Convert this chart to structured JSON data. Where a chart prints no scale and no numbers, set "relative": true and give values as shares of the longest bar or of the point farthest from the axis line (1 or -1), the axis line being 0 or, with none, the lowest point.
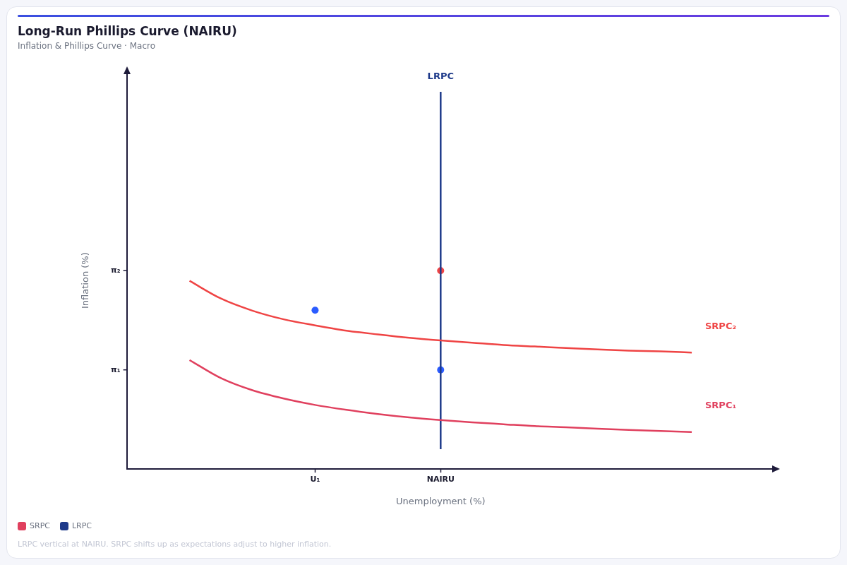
{
  "chart_data": {
    "type": "line",
    "title": "Long-Run Phillips Curve (NAIRU)",
    "subtitle": "Inflation & Phillips Curve · Macro",
    "xlabel": "Unemployment (%)",
    "ylabel": "Inflation (%)",
    "relative": true,
    "categories": [
      null,
      null,
      null,
      null,
      null,
      null,
      "U₁",
      null,
      null,
      null,
      "NAIRU",
      null,
      null,
      null,
      null,
      null,
      null,
      null,
      null,
      null,
      null
    ],
    "grid": false,
    "legend": "bottom left",
    "series": [
      {
        "name": "SRPC",
        "color": "#e0405e",
        "values": [
          null,
          null,
          0.289,
          0.241,
          0.209,
          0.187,
          0.17,
          0.157,
          0.146,
          0.137,
          0.13,
          0.124,
          0.119,
          0.114,
          0.111,
          0.107,
          0.104,
          0.101,
          0.098,
          null,
          null
        ]
      },
      {
        "color": "#ef4444",
        "values": [
          null,
          null,
          0.499,
          0.452,
          0.42,
          0.397,
          0.381,
          0.367,
          0.357,
          0.348,
          0.341,
          0.335,
          0.329,
          0.325,
          0.321,
          0.317,
          0.314,
          0.312,
          0.309,
          null,
          null
        ]
      },
      {
        "name": "LRPC",
        "color": "#1e3a8a",
        "x": [
          "NAIRU",
          "NAIRU"
        ],
        "values": [
          0.053,
          1.0
        ]
      },
      {
        "type": "scatter",
        "marker": "circle",
        "x": [
          "NAIRU",
          "NAIRU",
          "U₁"
        ],
        "values": [
          0.526,
          0.263,
          0.421
        ],
        "colors": [
          "#ef4444",
          "#2b5cff",
          "#2b5cff"
        ]
      }
    ],
    "annotations": [
      "SRPC₂",
      "SRPC₁",
      {
        "text": "LRPC",
        "x": "NAIRU",
        "y": 1.0
      },
      "π₁",
      "π₂",
      "LRPC vertical at NAIRU. SRPC shifts up as expectations adjust to higher inflation."
    ]
  }
}
